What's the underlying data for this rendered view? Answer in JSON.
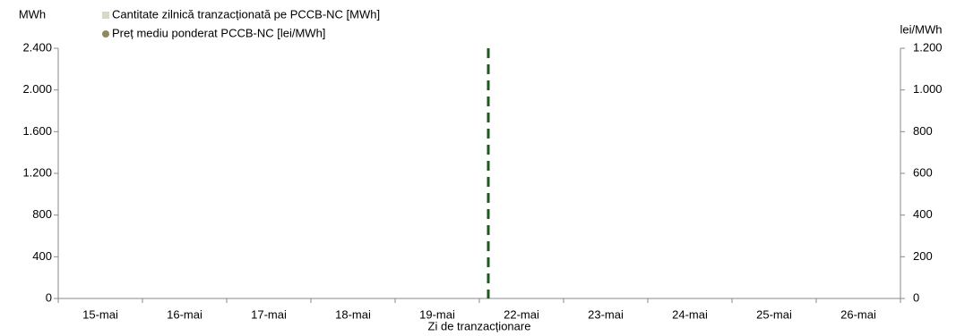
{
  "chart_data": {
    "type": "bar",
    "y_label": "MWh",
    "y2_label": "lei/MWh",
    "x_label": "Zi de tranzacționare",
    "categories": [
      "15-mai",
      "16-mai",
      "17-mai",
      "18-mai",
      "19-mai",
      "22-mai",
      "23-mai",
      "24-mai",
      "25-mai",
      "26-mai"
    ],
    "series": [
      {
        "name": "Cantitate zilnică tranzacționată pe PCCB-NC [MWh]",
        "type": "bar",
        "color": "#d9d8c6",
        "values": [
          null,
          null,
          null,
          null,
          null,
          null,
          null,
          null,
          null,
          null
        ]
      },
      {
        "name": "Preț mediu ponderat PCCB-NC [lei/MWh]",
        "type": "scatter",
        "axis": "y2",
        "color": "#8d8a5c",
        "values": [
          null,
          null,
          null,
          null,
          null,
          null,
          null,
          null,
          null,
          null
        ]
      }
    ],
    "ylim": [
      0,
      2400
    ],
    "yticks": [
      0,
      {
        "value": 400,
        "label": "400"
      },
      {
        "value": 800,
        "label": "800"
      },
      {
        "value": 1200,
        "label": "1.200"
      },
      {
        "value": 1600,
        "label": "1.600"
      },
      {
        "value": 2000,
        "label": "2.000"
      },
      {
        "value": 2400,
        "label": "2.400"
      }
    ],
    "y2lim": [
      0,
      1200
    ],
    "y2ticks": [
      0,
      200,
      400,
      600,
      800,
      {
        "value": 1000,
        "label": "1.000"
      },
      {
        "value": 1200,
        "label": "1.200"
      }
    ],
    "grid": false
  }
}
